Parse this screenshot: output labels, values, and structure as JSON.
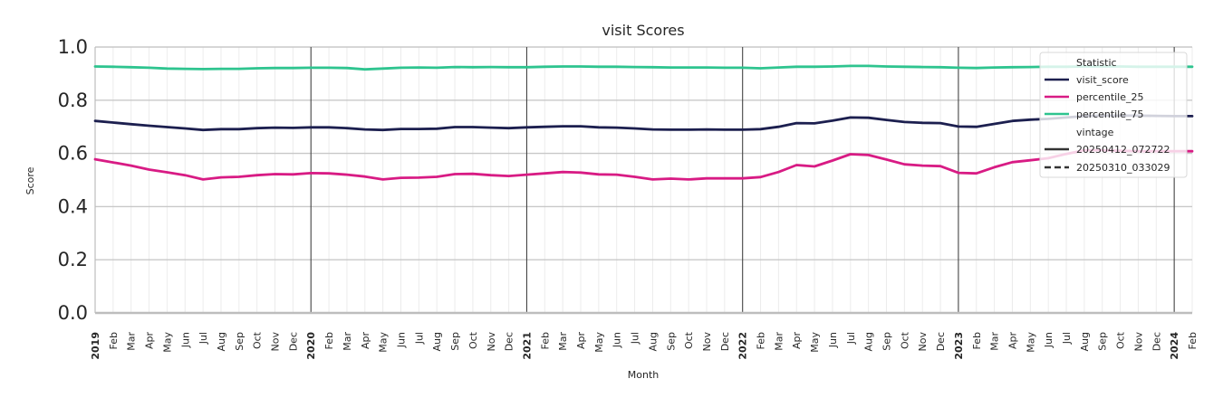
{
  "chart_data": {
    "type": "line",
    "title": "visit Scores",
    "xlabel": "Month",
    "ylabel": "Score",
    "ylim": [
      0,
      1
    ],
    "y_ticks": [
      "0.0",
      "0.2",
      "0.4",
      "0.6",
      "0.8",
      "1.0"
    ],
    "x": [
      "2019-01",
      "2019-02",
      "2019-03",
      "2019-04",
      "2019-05",
      "2019-06",
      "2019-07",
      "2019-08",
      "2019-09",
      "2019-10",
      "2019-11",
      "2019-12",
      "2020-01",
      "2020-02",
      "2020-03",
      "2020-04",
      "2020-05",
      "2020-06",
      "2020-07",
      "2020-08",
      "2020-09",
      "2020-10",
      "2020-11",
      "2020-12",
      "2021-01",
      "2021-02",
      "2021-03",
      "2021-04",
      "2021-05",
      "2021-06",
      "2021-07",
      "2021-08",
      "2021-09",
      "2021-10",
      "2021-11",
      "2021-12",
      "2022-01",
      "2022-02",
      "2022-03",
      "2022-04",
      "2022-05",
      "2022-06",
      "2022-07",
      "2022-08",
      "2022-09",
      "2022-10",
      "2022-11",
      "2022-12",
      "2023-01",
      "2023-02",
      "2023-03",
      "2023-04",
      "2023-05",
      "2023-06",
      "2023-07",
      "2023-08",
      "2023-09",
      "2023-10",
      "2023-11",
      "2023-12",
      "2024-01",
      "2024-02"
    ],
    "x_tick_labels": [
      "2019",
      "Feb",
      "Mar",
      "Apr",
      "May",
      "Jun",
      "Jul",
      "Aug",
      "Sep",
      "Oct",
      "Nov",
      "Dec",
      "2020",
      "Feb",
      "Mar",
      "Apr",
      "May",
      "Jun",
      "Jul",
      "Aug",
      "Sep",
      "Oct",
      "Nov",
      "Dec",
      "2021",
      "Feb",
      "Mar",
      "Apr",
      "May",
      "Jun",
      "Jul",
      "Aug",
      "Sep",
      "Oct",
      "Nov",
      "Dec",
      "2022",
      "Feb",
      "Mar",
      "Apr",
      "May",
      "Jun",
      "Jul",
      "Aug",
      "Sep",
      "Oct",
      "Nov",
      "Dec",
      "2023",
      "Feb",
      "Mar",
      "Apr",
      "May",
      "Jun",
      "Jul",
      "Aug",
      "Sep",
      "Oct",
      "Nov",
      "Dec",
      "2024",
      "Feb"
    ],
    "series": [
      {
        "name": "percentile_75",
        "color": "#2ec48f",
        "vintage": "20250412_072722",
        "values": [
          0.927,
          0.926,
          0.924,
          0.922,
          0.919,
          0.918,
          0.917,
          0.918,
          0.918,
          0.92,
          0.921,
          0.921,
          0.922,
          0.922,
          0.921,
          0.916,
          0.919,
          0.922,
          0.923,
          0.922,
          0.925,
          0.924,
          0.925,
          0.924,
          0.924,
          0.926,
          0.927,
          0.927,
          0.926,
          0.926,
          0.925,
          0.924,
          0.923,
          0.923,
          0.923,
          0.922,
          0.922,
          0.92,
          0.923,
          0.926,
          0.926,
          0.927,
          0.929,
          0.929,
          0.927,
          0.926,
          0.925,
          0.924,
          0.922,
          0.921,
          0.923,
          0.924,
          0.925,
          0.926,
          0.926,
          0.927,
          0.927,
          0.927,
          0.926,
          0.926,
          0.926,
          0.926
        ]
      },
      {
        "name": "visit_score",
        "color": "#1c1f4f",
        "vintage": "20250412_072722",
        "values": [
          0.722,
          0.716,
          0.71,
          0.704,
          0.699,
          0.694,
          0.688,
          0.691,
          0.691,
          0.695,
          0.697,
          0.696,
          0.698,
          0.698,
          0.695,
          0.69,
          0.688,
          0.692,
          0.692,
          0.693,
          0.699,
          0.699,
          0.697,
          0.695,
          0.698,
          0.7,
          0.702,
          0.702,
          0.698,
          0.697,
          0.694,
          0.69,
          0.689,
          0.689,
          0.69,
          0.689,
          0.689,
          0.691,
          0.7,
          0.714,
          0.713,
          0.723,
          0.735,
          0.734,
          0.726,
          0.718,
          0.715,
          0.714,
          0.701,
          0.7,
          0.711,
          0.722,
          0.727,
          0.73,
          0.735,
          0.74,
          0.742,
          0.742,
          0.742,
          0.741,
          0.74,
          0.74
        ]
      },
      {
        "name": "percentile_25",
        "color": "#d81b84",
        "vintage": "20250412_072722",
        "values": [
          0.578,
          0.566,
          0.554,
          0.539,
          0.529,
          0.518,
          0.502,
          0.51,
          0.512,
          0.518,
          0.522,
          0.521,
          0.526,
          0.525,
          0.52,
          0.513,
          0.502,
          0.508,
          0.509,
          0.512,
          0.522,
          0.523,
          0.518,
          0.515,
          0.52,
          0.525,
          0.53,
          0.528,
          0.521,
          0.52,
          0.512,
          0.502,
          0.505,
          0.502,
          0.506,
          0.506,
          0.506,
          0.511,
          0.53,
          0.556,
          0.551,
          0.573,
          0.597,
          0.594,
          0.577,
          0.559,
          0.554,
          0.552,
          0.527,
          0.525,
          0.548,
          0.567,
          0.574,
          0.582,
          0.598,
          0.612,
          0.612,
          0.61,
          0.608,
          0.608,
          0.608,
          0.608
        ]
      }
    ],
    "legend": {
      "placement": "top-right",
      "statistic_title": "Statistic",
      "statistic_items": [
        {
          "label": "visit_score",
          "color": "#1c1f4f"
        },
        {
          "label": "percentile_25",
          "color": "#d81b84"
        },
        {
          "label": "percentile_75",
          "color": "#2ec48f"
        }
      ],
      "vintage_title": "vintage",
      "vintage_items": [
        {
          "label": "20250412_072722",
          "dash": "solid"
        },
        {
          "label": "20250310_033029",
          "dash": "dashed"
        }
      ]
    },
    "grid": true
  }
}
